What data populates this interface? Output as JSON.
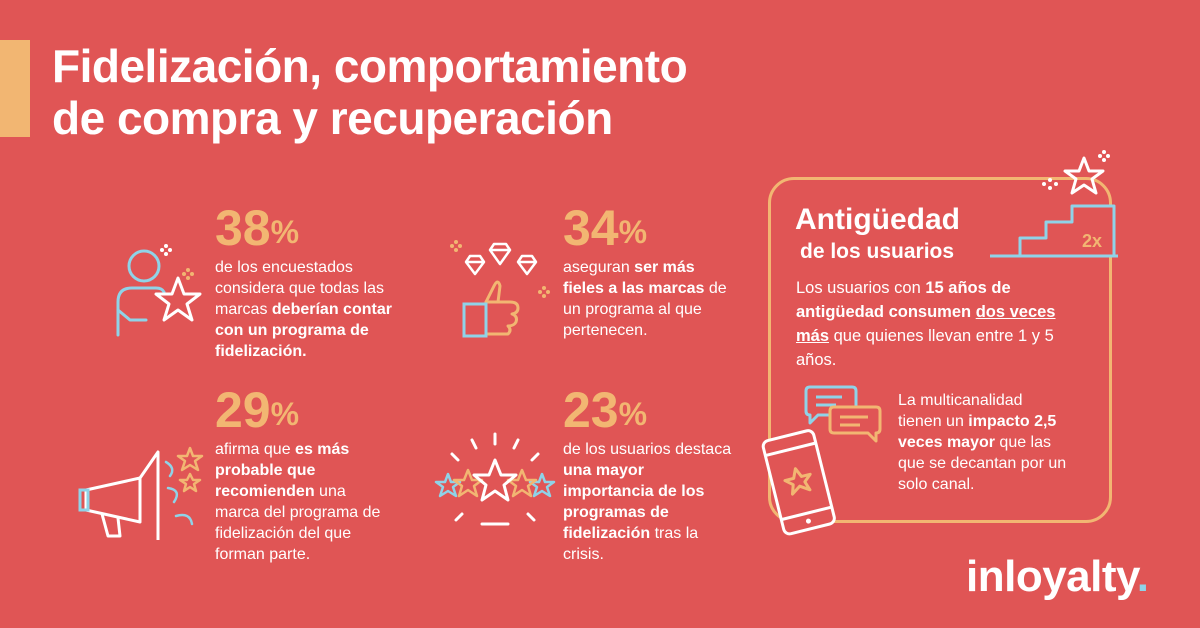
{
  "title": {
    "line1": "Fidelización, comportamiento",
    "line2": "de compra y recuperación"
  },
  "stats": [
    {
      "value": "38",
      "unit": "%",
      "text_pre": "de los encuestados considera que todas las marcas ",
      "text_bold": "deberían contar con un programa de fidelización.",
      "text_post": "",
      "icon": "person-star-icon"
    },
    {
      "value": "34",
      "unit": "%",
      "text_pre": "aseguran ",
      "text_bold": "ser más fieles a las marcas",
      "text_post": " de un programa al que pertenecen.",
      "icon": "thumbs-up-diamonds-icon"
    },
    {
      "value": "29",
      "unit": "%",
      "text_pre": "afirma que ",
      "text_bold": "es más probable que recomienden",
      "text_post": " una marca del programa de fidelización del que forman parte.",
      "icon": "megaphone-icon"
    },
    {
      "value": "23",
      "unit": "%",
      "text_pre": "de los usuarios destaca ",
      "text_bold": "una mayor importancia de los programas de fidelización",
      "text_post": " tras la crisis.",
      "icon": "five-stars-icon"
    }
  ],
  "panel": {
    "title": "Antigüedad",
    "subtitle": "de los usuarios",
    "badge": "2x",
    "p1_a": "Los usuarios con ",
    "p1_b": "15 años de antigüedad consumen ",
    "p1_c": "dos veces más",
    "p1_d": " que quienes llevan entre 1 y 5 años.",
    "p2_a": "La multicanalidad tienen un ",
    "p2_b": "impacto 2,5 veces mayor",
    "p2_c": " que las que se decantan por un solo canal."
  },
  "logo": {
    "text": "inloyalty",
    "dot": "."
  },
  "colors": {
    "background": "#e05555",
    "accent": "#f2b672",
    "icon_blue": "#8fd3e8",
    "text": "#ffffff"
  }
}
